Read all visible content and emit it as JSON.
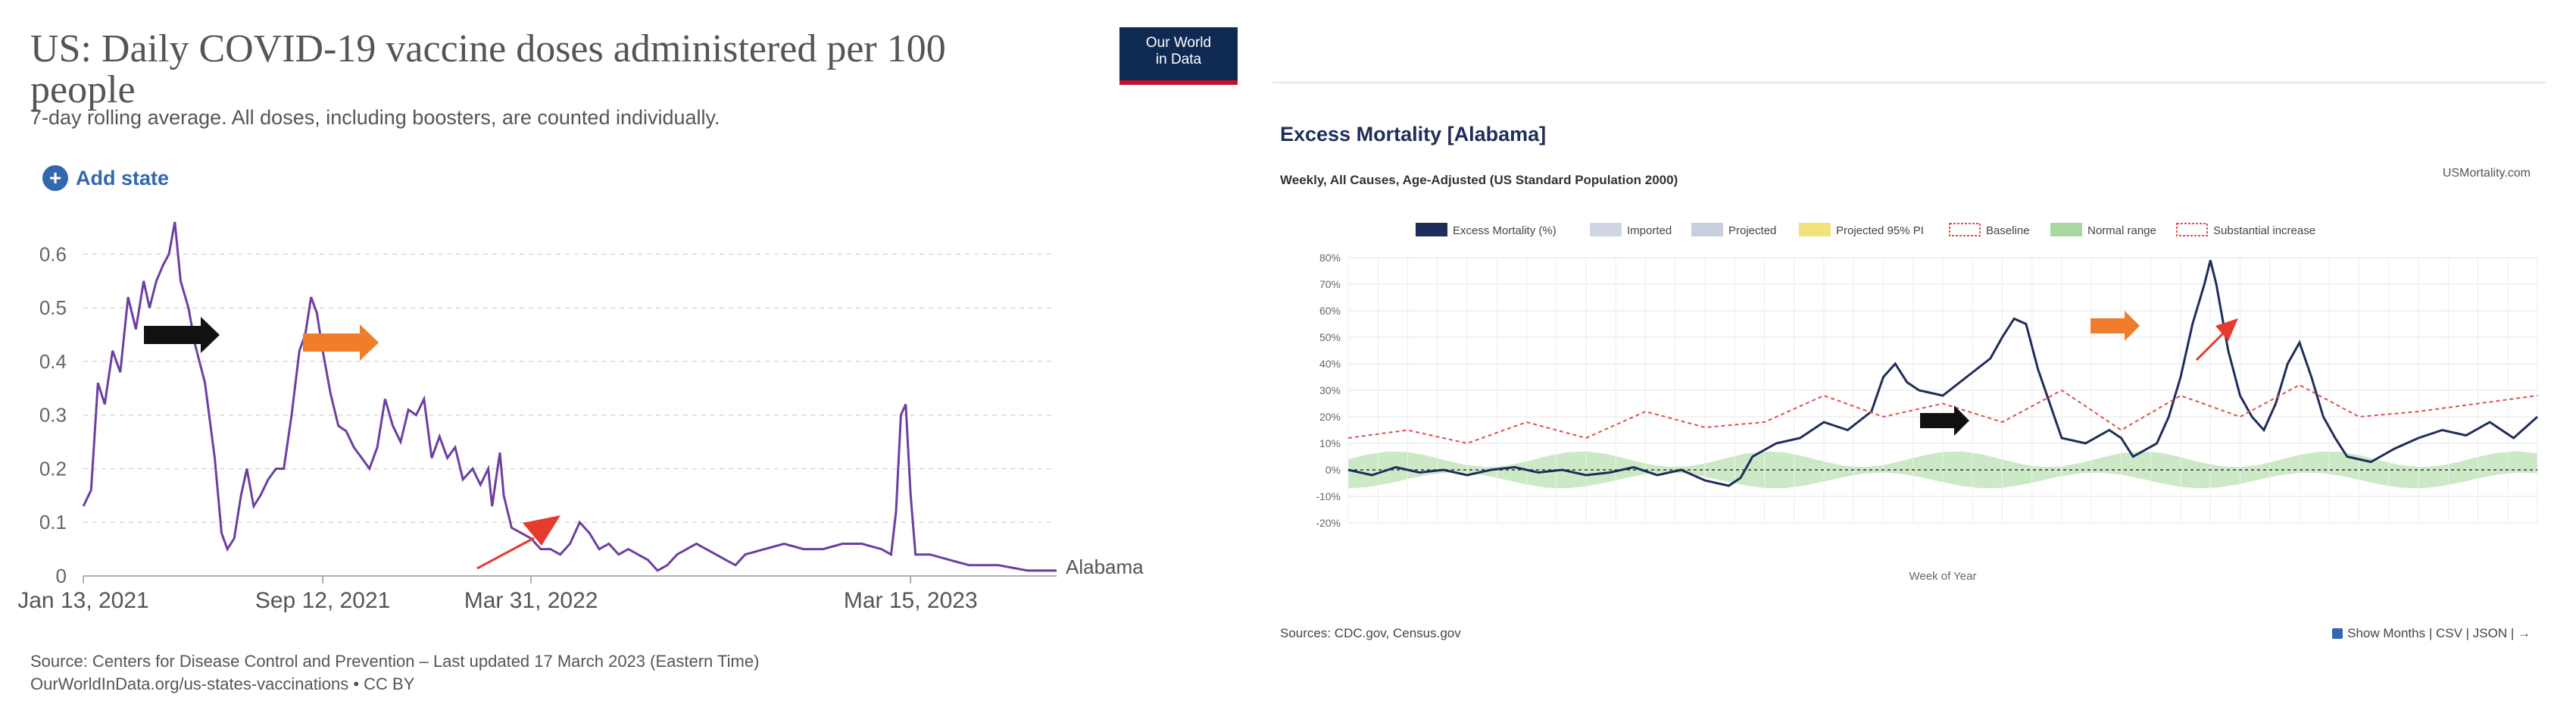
{
  "left": {
    "title": "US: Daily COVID-19 vaccine doses administered per 100 people",
    "subtitle": "7-day rolling average. All doses, including boosters, are counted individually.",
    "logo": [
      "Our World",
      "in Data"
    ],
    "add_state": "Add state",
    "source_line1": "Source: Centers for Disease Control and Prevention – Last updated 17 March 2023 (Eastern Time)",
    "source_line2": "OurWorldInData.org/us-states-vaccinations • CC BY"
  },
  "right": {
    "title": "Excess Mortality [Alabama]",
    "subtitle": "Weekly, All Causes, Age-Adjusted (US Standard Population 2000)",
    "brand": "USMortality.com",
    "source": "Sources: CDC.gov, Census.gov",
    "links": "Show Months | CSV | JSON | →",
    "xlabel": "Week of Year"
  },
  "chart_data": [
    {
      "type": "line",
      "title": "US: Daily COVID-19 vaccine doses administered per 100 people",
      "subtitle": "7-day rolling average. All doses, including boosters, are counted individually.",
      "x_ticks": [
        "Jan 13, 2021",
        "Sep 12, 2021",
        "Mar 31, 2022",
        "Mar 15, 2023"
      ],
      "x_tick_positions": [
        0,
        0.246,
        0.46,
        0.85
      ],
      "ylim": [
        0,
        0.65
      ],
      "y_ticks": [
        0,
        0.1,
        0.2,
        0.3,
        0.4,
        0.5,
        0.6
      ],
      "grid": true,
      "series": [
        {
          "name": "Alabama",
          "color": "#6b3fa0",
          "points": [
            [
              0,
              0.13
            ],
            [
              0.008,
              0.16
            ],
            [
              0.015,
              0.36
            ],
            [
              0.022,
              0.32
            ],
            [
              0.03,
              0.42
            ],
            [
              0.038,
              0.38
            ],
            [
              0.046,
              0.52
            ],
            [
              0.054,
              0.46
            ],
            [
              0.062,
              0.55
            ],
            [
              0.068,
              0.5
            ],
            [
              0.075,
              0.55
            ],
            [
              0.082,
              0.58
            ],
            [
              0.088,
              0.6
            ],
            [
              0.094,
              0.66
            ],
            [
              0.1,
              0.55
            ],
            [
              0.108,
              0.5
            ],
            [
              0.115,
              0.43
            ],
            [
              0.125,
              0.36
            ],
            [
              0.135,
              0.22
            ],
            [
              0.142,
              0.08
            ],
            [
              0.148,
              0.05
            ],
            [
              0.155,
              0.07
            ],
            [
              0.162,
              0.15
            ],
            [
              0.168,
              0.2
            ],
            [
              0.175,
              0.13
            ],
            [
              0.182,
              0.15
            ],
            [
              0.19,
              0.18
            ],
            [
              0.198,
              0.2
            ],
            [
              0.206,
              0.2
            ],
            [
              0.214,
              0.3
            ],
            [
              0.222,
              0.42
            ],
            [
              0.228,
              0.45
            ],
            [
              0.234,
              0.52
            ],
            [
              0.24,
              0.49
            ],
            [
              0.246,
              0.42
            ],
            [
              0.254,
              0.34
            ],
            [
              0.262,
              0.28
            ],
            [
              0.27,
              0.27
            ],
            [
              0.278,
              0.24
            ],
            [
              0.286,
              0.22
            ],
            [
              0.294,
              0.2
            ],
            [
              0.302,
              0.24
            ],
            [
              0.31,
              0.33
            ],
            [
              0.318,
              0.28
            ],
            [
              0.326,
              0.25
            ],
            [
              0.334,
              0.31
            ],
            [
              0.342,
              0.3
            ],
            [
              0.35,
              0.33
            ],
            [
              0.358,
              0.22
            ],
            [
              0.366,
              0.26
            ],
            [
              0.374,
              0.22
            ],
            [
              0.382,
              0.24
            ],
            [
              0.39,
              0.18
            ],
            [
              0.4,
              0.2
            ],
            [
              0.408,
              0.17
            ],
            [
              0.416,
              0.2
            ],
            [
              0.42,
              0.13
            ],
            [
              0.424,
              0.18
            ],
            [
              0.428,
              0.23
            ],
            [
              0.432,
              0.15
            ],
            [
              0.44,
              0.09
            ],
            [
              0.45,
              0.08
            ],
            [
              0.46,
              0.07
            ],
            [
              0.47,
              0.05
            ],
            [
              0.48,
              0.05
            ],
            [
              0.49,
              0.04
            ],
            [
              0.5,
              0.06
            ],
            [
              0.51,
              0.1
            ],
            [
              0.52,
              0.08
            ],
            [
              0.53,
              0.05
            ],
            [
              0.54,
              0.06
            ],
            [
              0.55,
              0.04
            ],
            [
              0.56,
              0.05
            ],
            [
              0.57,
              0.04
            ],
            [
              0.58,
              0.03
            ],
            [
              0.59,
              0.01
            ],
            [
              0.6,
              0.02
            ],
            [
              0.61,
              0.04
            ],
            [
              0.62,
              0.05
            ],
            [
              0.63,
              0.06
            ],
            [
              0.64,
              0.05
            ],
            [
              0.65,
              0.04
            ],
            [
              0.66,
              0.03
            ],
            [
              0.67,
              0.02
            ],
            [
              0.68,
              0.04
            ],
            [
              0.7,
              0.05
            ],
            [
              0.72,
              0.06
            ],
            [
              0.74,
              0.05
            ],
            [
              0.76,
              0.05
            ],
            [
              0.78,
              0.06
            ],
            [
              0.8,
              0.06
            ],
            [
              0.82,
              0.05
            ],
            [
              0.83,
              0.04
            ],
            [
              0.835,
              0.12
            ],
            [
              0.84,
              0.3
            ],
            [
              0.845,
              0.32
            ],
            [
              0.85,
              0.15
            ],
            [
              0.855,
              0.04
            ],
            [
              0.87,
              0.04
            ],
            [
              0.89,
              0.03
            ],
            [
              0.91,
              0.02
            ],
            [
              0.94,
              0.02
            ],
            [
              0.97,
              0.01
            ],
            [
              1,
              0.01
            ]
          ]
        }
      ]
    },
    {
      "type": "line",
      "title": "Excess Mortality [Alabama]",
      "subtitle": "Weekly, All Causes, Age-Adjusted (US Standard Population 2000)",
      "xlabel": "Week of Year",
      "ylim": [
        -20,
        80
      ],
      "y_ticks": [
        -20,
        -10,
        0,
        10,
        20,
        30,
        40,
        50,
        60,
        70,
        80
      ],
      "legend": [
        "Excess Mortality (%)",
        "Imported",
        "Projected",
        "Projected 95% PI",
        "Baseline",
        "Normal range",
        "Substantial increase"
      ],
      "legend_placement": "top",
      "grid": true,
      "series": [
        {
          "name": "Excess Mortality (%)",
          "color": "#1f2d5a",
          "points": [
            [
              0,
              0
            ],
            [
              0.02,
              -2
            ],
            [
              0.04,
              1
            ],
            [
              0.06,
              -1
            ],
            [
              0.08,
              0
            ],
            [
              0.1,
              -2
            ],
            [
              0.12,
              0
            ],
            [
              0.14,
              1
            ],
            [
              0.16,
              -1
            ],
            [
              0.18,
              0
            ],
            [
              0.2,
              -2
            ],
            [
              0.22,
              -1
            ],
            [
              0.24,
              1
            ],
            [
              0.26,
              -2
            ],
            [
              0.28,
              0
            ],
            [
              0.3,
              -4
            ],
            [
              0.32,
              -6
            ],
            [
              0.33,
              -3
            ],
            [
              0.34,
              5
            ],
            [
              0.36,
              10
            ],
            [
              0.38,
              12
            ],
            [
              0.4,
              18
            ],
            [
              0.42,
              15
            ],
            [
              0.44,
              22
            ],
            [
              0.45,
              35
            ],
            [
              0.46,
              40
            ],
            [
              0.47,
              33
            ],
            [
              0.48,
              30
            ],
            [
              0.5,
              28
            ],
            [
              0.52,
              35
            ],
            [
              0.54,
              42
            ],
            [
              0.55,
              50
            ],
            [
              0.56,
              57
            ],
            [
              0.57,
              55
            ],
            [
              0.58,
              38
            ],
            [
              0.59,
              25
            ],
            [
              0.6,
              12
            ],
            [
              0.62,
              10
            ],
            [
              0.64,
              15
            ],
            [
              0.65,
              12
            ],
            [
              0.66,
              5
            ],
            [
              0.68,
              10
            ],
            [
              0.69,
              20
            ],
            [
              0.7,
              35
            ],
            [
              0.71,
              55
            ],
            [
              0.72,
              70
            ],
            [
              0.725,
              79
            ],
            [
              0.73,
              70
            ],
            [
              0.74,
              45
            ],
            [
              0.75,
              28
            ],
            [
              0.76,
              20
            ],
            [
              0.77,
              15
            ],
            [
              0.78,
              25
            ],
            [
              0.79,
              40
            ],
            [
              0.8,
              48
            ],
            [
              0.81,
              35
            ],
            [
              0.82,
              20
            ],
            [
              0.83,
              12
            ],
            [
              0.84,
              5
            ],
            [
              0.86,
              3
            ],
            [
              0.88,
              8
            ],
            [
              0.9,
              12
            ],
            [
              0.92,
              15
            ],
            [
              0.94,
              13
            ],
            [
              0.96,
              18
            ],
            [
              0.98,
              12
            ],
            [
              1,
              20
            ]
          ]
        },
        {
          "name": "Baseline",
          "color": "#e05050",
          "points": [
            [
              0,
              12
            ],
            [
              0.05,
              15
            ],
            [
              0.1,
              10
            ],
            [
              0.15,
              18
            ],
            [
              0.2,
              12
            ],
            [
              0.25,
              22
            ],
            [
              0.3,
              16
            ],
            [
              0.35,
              18
            ],
            [
              0.4,
              28
            ],
            [
              0.45,
              20
            ],
            [
              0.5,
              25
            ],
            [
              0.55,
              18
            ],
            [
              0.6,
              30
            ],
            [
              0.65,
              15
            ],
            [
              0.7,
              28
            ],
            [
              0.75,
              20
            ],
            [
              0.8,
              32
            ],
            [
              0.85,
              20
            ],
            [
              0.9,
              22
            ],
            [
              0.95,
              25
            ],
            [
              1,
              28
            ]
          ]
        }
      ]
    }
  ]
}
